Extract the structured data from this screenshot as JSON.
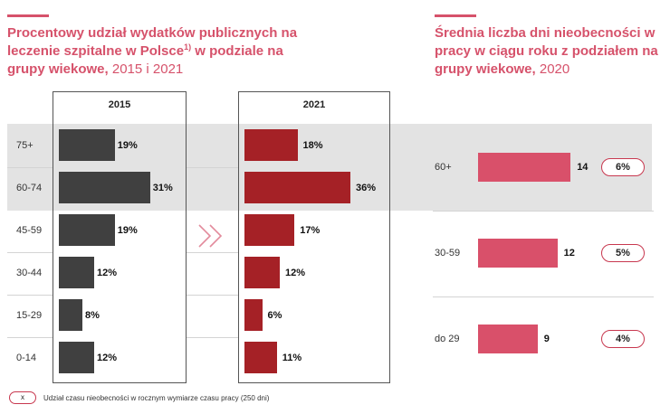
{
  "left_panel": {
    "title_main": "Procentowy udział wydatków publicznych na leczenie szpitalne w Polsce",
    "title_sup": "1)",
    "title_cont": " w podziale na grupy wiekowe,",
    "title_years": " 2015 i 2021"
  },
  "right_panel": {
    "title_main": "Średnia liczba dni nieobecności w pracy w ciągu roku z podziałem na grupy wiekowe,",
    "title_year": " 2020"
  },
  "footnote": {
    "marker": "x",
    "text": "Udział czasu nieobecności w rocznym wymiarze czasu pracy (250 dni)"
  },
  "colors": {
    "accent": "#d6526b",
    "bar_2015": "#404040",
    "bar_2021": "#a52126",
    "bar_absence": "#d9506a",
    "highlight_band": "#e3e3e3"
  },
  "icons": {
    "arrow": "double-chevron-right-icon"
  },
  "chart_data": [
    {
      "type": "bar",
      "orientation": "horizontal",
      "title": "Procentowy udział wydatków publicznych na leczenie szpitalne w Polsce 1) w podziale na grupy wiekowe, 2015 i 2021",
      "categories": [
        "75+",
        "60-74",
        "45-59",
        "30-44",
        "15-29",
        "0-14"
      ],
      "series": [
        {
          "name": "2015",
          "values": [
            19,
            31,
            19,
            12,
            8,
            12
          ],
          "labels": [
            "19%",
            "31%",
            "19%",
            "12%",
            "8%",
            "12%"
          ]
        },
        {
          "name": "2021",
          "values": [
            18,
            36,
            17,
            12,
            6,
            11
          ],
          "labels": [
            "18%",
            "36%",
            "17%",
            "12%",
            "6%",
            "11%"
          ]
        }
      ],
      "unit": "%",
      "highlighted_categories": [
        "75+",
        "60-74"
      ]
    },
    {
      "type": "bar",
      "orientation": "horizontal",
      "title": "Średnia liczba dni nieobecności w pracy w ciągu roku z podziałem na grupy wiekowe, 2020",
      "categories": [
        "60+",
        "30-59",
        "do 29"
      ],
      "values": [
        14,
        12,
        9
      ],
      "labels": [
        "14",
        "12",
        "9"
      ],
      "share_of_working_time": [
        "6%",
        "5%",
        "4%"
      ]
    }
  ]
}
